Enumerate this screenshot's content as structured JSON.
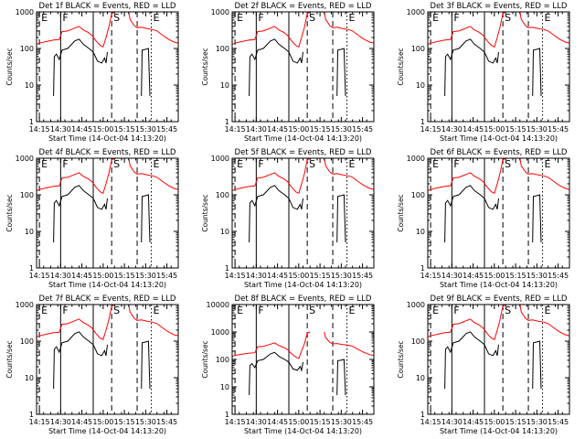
{
  "chart_data": [
    {
      "id": "1f",
      "type": "line",
      "title": "Det 1f BLACK = Events, RED = LLD",
      "ylabel": "Counts/sec",
      "xlabel": "Start Time (14-Oct-04 14:13:20)",
      "yscale": "log",
      "ylim": [
        1,
        1000
      ],
      "xticks": [
        "14:15",
        "14:30",
        "14:45",
        "15:00",
        "15:15",
        "15:30",
        "15:45"
      ],
      "yticks": [
        "1",
        "10",
        "100",
        "1000"
      ],
      "series": [
        {
          "color": "#ff0000"
        },
        {
          "color": "#000000"
        }
      ]
    },
    {
      "id": "2f",
      "type": "line",
      "title": "Det 2f BLACK = Events, RED = LLD",
      "ylabel": "Counts/sec",
      "xlabel": "Start Time (14-Oct-04 14:13:20)",
      "yscale": "log",
      "ylim": [
        1,
        1000
      ],
      "xticks": [
        "14:15",
        "14:30",
        "14:45",
        "15:00",
        "15:15",
        "15:30",
        "15:45"
      ],
      "yticks": [
        "1",
        "10",
        "100",
        "1000"
      ],
      "series": [
        {
          "color": "#ff0000"
        },
        {
          "color": "#000000"
        }
      ]
    },
    {
      "id": "3f",
      "type": "line",
      "title": "Det 3f BLACK = Events, RED = LLD",
      "ylabel": "Counts/sec",
      "xlabel": "Start Time (14-Oct-04 14:13:20)",
      "yscale": "log",
      "ylim": [
        1,
        1000
      ],
      "xticks": [
        "14:15",
        "14:30",
        "14:45",
        "15:00",
        "15:15",
        "15:30",
        "15:45"
      ],
      "yticks": [
        "1",
        "10",
        "100",
        "1000"
      ],
      "series": [
        {
          "color": "#ff0000"
        },
        {
          "color": "#000000"
        }
      ]
    },
    {
      "id": "4f",
      "type": "line",
      "title": "Det 4f BLACK = Events, RED = LLD",
      "ylabel": "Counts/sec",
      "xlabel": "Start Time (14-Oct-04 14:13:20)",
      "yscale": "log",
      "ylim": [
        1,
        1000
      ],
      "xticks": [
        "14:15",
        "14:30",
        "14:45",
        "15:00",
        "15:15",
        "15:30",
        "15:45"
      ],
      "yticks": [
        "1",
        "10",
        "100",
        "1000"
      ],
      "series": [
        {
          "color": "#ff0000"
        },
        {
          "color": "#000000"
        }
      ]
    },
    {
      "id": "5f",
      "type": "line",
      "title": "Det 5f BLACK = Events, RED = LLD",
      "ylabel": "Counts/sec",
      "xlabel": "Start Time (14-Oct-04 14:13:20)",
      "yscale": "log",
      "ylim": [
        1,
        1000
      ],
      "xticks": [
        "14:15",
        "14:30",
        "14:45",
        "15:00",
        "15:15",
        "15:30",
        "15:45"
      ],
      "yticks": [
        "1",
        "10",
        "100",
        "1000"
      ],
      "series": [
        {
          "color": "#ff0000"
        },
        {
          "color": "#000000"
        }
      ]
    },
    {
      "id": "6f",
      "type": "line",
      "title": "Det 6f BLACK = Events, RED = LLD",
      "ylabel": "Counts/sec",
      "xlabel": "Start Time (14-Oct-04 14:13:20)",
      "yscale": "log",
      "ylim": [
        1,
        1000
      ],
      "xticks": [
        "14:15",
        "14:30",
        "14:45",
        "15:00",
        "15:15",
        "15:30",
        "15:45"
      ],
      "yticks": [
        "1",
        "10",
        "100",
        "1000"
      ],
      "series": [
        {
          "color": "#ff0000"
        },
        {
          "color": "#000000"
        }
      ]
    },
    {
      "id": "7f",
      "type": "line",
      "title": "Det 7f BLACK = Events, RED = LLD",
      "ylabel": "Counts/sec",
      "xlabel": "Start Time (14-Oct-04 14:13:20)",
      "yscale": "log",
      "ylim": [
        1,
        1000
      ],
      "xticks": [
        "14:15",
        "14:30",
        "14:45",
        "15:00",
        "15:15",
        "15:30",
        "15:45"
      ],
      "yticks": [
        "1",
        "10",
        "100",
        "1000"
      ],
      "series": [
        {
          "color": "#ff0000"
        },
        {
          "color": "#000000"
        }
      ]
    },
    {
      "id": "8f",
      "type": "line",
      "title": "Det 8f BLACK = Events, RED = LLD",
      "ylabel": "Counts/sec",
      "xlabel": "Start Time (14-Oct-04 14:13:20)",
      "yscale": "log",
      "ylim": [
        1,
        10000
      ],
      "xticks": [
        "14:15",
        "14:30",
        "14:45",
        "15:00",
        "15:15",
        "15:30",
        "15:45"
      ],
      "yticks": [
        "1",
        "10",
        "100",
        "1000",
        "10000"
      ],
      "series": [
        {
          "color": "#ff0000"
        },
        {
          "color": "#000000"
        }
      ]
    },
    {
      "id": "9f",
      "type": "line",
      "title": "Det 9f BLACK = Events, RED = LLD",
      "ylabel": "Counts/sec",
      "xlabel": "Start Time (14-Oct-04 14:13:20)",
      "yscale": "log",
      "ylim": [
        1,
        1000
      ],
      "xticks": [
        "14:15",
        "14:30",
        "14:45",
        "15:00",
        "15:15",
        "15:30",
        "15:45"
      ],
      "yticks": [
        "1",
        "10",
        "100",
        "1000"
      ],
      "series": [
        {
          "color": "#ff0000"
        },
        {
          "color": "#000000"
        }
      ]
    }
  ],
  "xrange": [
    "14:13",
    "15:53"
  ],
  "markers": [
    {
      "time": "14:15",
      "label": "E",
      "style": "dashed"
    },
    {
      "time": "14:30",
      "label": "F",
      "style": "solid"
    },
    {
      "time": "14:53",
      "label": "",
      "style": "solid"
    },
    {
      "time": "15:06",
      "label": "S",
      "style": "dashed"
    },
    {
      "time": "15:24",
      "label": "",
      "style": "dashed"
    },
    {
      "time": "15:34",
      "label": "E",
      "style": "dotted"
    }
  ],
  "common_series": {
    "red_lld": [
      [
        "14:13",
        130
      ],
      [
        "14:15",
        140
      ],
      [
        "14:20",
        155
      ],
      [
        "14:25",
        170
      ],
      [
        "14:29",
        175
      ],
      [
        "14:31",
        290
      ],
      [
        "14:35",
        300
      ],
      [
        "14:40",
        360
      ],
      [
        "14:43",
        400
      ],
      [
        "14:46",
        320
      ],
      [
        "14:49",
        280
      ],
      [
        "14:52",
        230
      ],
      [
        "14:55",
        160
      ],
      [
        "14:58",
        120
      ],
      [
        "15:00",
        110
      ],
      [
        "15:02",
        200
      ],
      [
        "15:04",
        380
      ],
      [
        "15:06",
        900
      ],
      [
        "15:08",
        1000
      ],
      null,
      [
        "15:18",
        1000
      ],
      [
        "15:19",
        620
      ],
      [
        "15:22",
        420
      ],
      [
        "15:24",
        370
      ],
      [
        "15:27",
        380
      ],
      [
        "15:31",
        350
      ],
      [
        "15:35",
        330
      ],
      [
        "15:38",
        300
      ],
      [
        "15:42",
        230
      ],
      [
        "15:46",
        180
      ],
      [
        "15:50",
        150
      ],
      [
        "15:53",
        140
      ]
    ],
    "black_events": [
      [
        "14:25",
        5
      ],
      [
        "14:25.5",
        60
      ],
      [
        "14:27",
        70
      ],
      [
        "14:29",
        50
      ],
      [
        "14:31",
        90
      ],
      [
        "14:35",
        100
      ],
      [
        "14:40",
        160
      ],
      [
        "14:43",
        180
      ],
      [
        "14:46",
        130
      ],
      [
        "14:50",
        100
      ],
      [
        "14:53",
        80
      ],
      [
        "14:56",
        45
      ],
      [
        "14:59",
        40
      ],
      [
        "15:01",
        55
      ],
      [
        "15:02",
        40
      ],
      [
        "15:03",
        80
      ],
      null,
      [
        "15:27",
        5
      ],
      [
        "15:27.5",
        90
      ],
      [
        "15:30",
        95
      ],
      [
        "15:32",
        100
      ],
      [
        "15:33",
        5
      ]
    ]
  }
}
